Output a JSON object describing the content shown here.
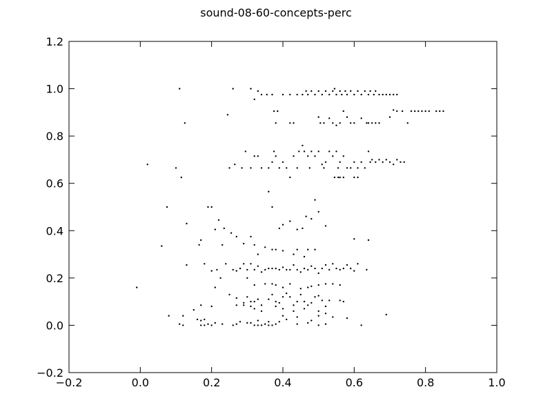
{
  "chart_data": {
    "type": "scatter",
    "title": "sound-08-60-concepts-perc",
    "xlabel": "",
    "ylabel": "",
    "xlim": [
      -0.2,
      1.0
    ],
    "ylim": [
      -0.2,
      1.2
    ],
    "grid": false,
    "marker_color": "#000000",
    "x_ticks": [
      -0.2,
      0.0,
      0.2,
      0.4,
      0.6,
      0.8,
      1.0
    ],
    "y_ticks": [
      -0.2,
      0.0,
      0.2,
      0.4,
      0.6,
      0.8,
      1.0,
      1.2
    ],
    "x_tick_labels": [
      "−0.2",
      "0.0",
      "0.2",
      "0.4",
      "0.6",
      "0.8",
      "1.0"
    ],
    "y_tick_labels": [
      "−0.2",
      "0.0",
      "0.2",
      "0.4",
      "0.6",
      "0.8",
      "1.0",
      "1.2"
    ],
    "points": [
      [
        0.11,
        1.0
      ],
      [
        0.26,
        1.0
      ],
      [
        0.31,
        1.0
      ],
      [
        0.32,
        0.955
      ],
      [
        0.33,
        0.99
      ],
      [
        0.34,
        0.975
      ],
      [
        0.355,
        0.975
      ],
      [
        0.37,
        0.975
      ],
      [
        0.4,
        0.975
      ],
      [
        0.42,
        0.975
      ],
      [
        0.44,
        0.975
      ],
      [
        0.455,
        0.975
      ],
      [
        0.465,
        0.99
      ],
      [
        0.47,
        0.975
      ],
      [
        0.48,
        0.99
      ],
      [
        0.49,
        0.975
      ],
      [
        0.5,
        0.99
      ],
      [
        0.51,
        0.975
      ],
      [
        0.52,
        0.99
      ],
      [
        0.53,
        0.975
      ],
      [
        0.54,
        0.99
      ],
      [
        0.545,
        1.0
      ],
      [
        0.55,
        0.975
      ],
      [
        0.56,
        0.99
      ],
      [
        0.565,
        0.975
      ],
      [
        0.575,
        0.99
      ],
      [
        0.58,
        0.975
      ],
      [
        0.59,
        0.99
      ],
      [
        0.6,
        0.975
      ],
      [
        0.61,
        0.99
      ],
      [
        0.62,
        0.975
      ],
      [
        0.63,
        0.99
      ],
      [
        0.64,
        0.975
      ],
      [
        0.645,
        0.99
      ],
      [
        0.655,
        0.975
      ],
      [
        0.66,
        0.99
      ],
      [
        0.67,
        0.975
      ],
      [
        0.68,
        0.975
      ],
      [
        0.69,
        0.975
      ],
      [
        0.7,
        0.975
      ],
      [
        0.71,
        0.975
      ],
      [
        0.72,
        0.975
      ],
      [
        0.125,
        0.855
      ],
      [
        0.245,
        0.89
      ],
      [
        0.375,
        0.905
      ],
      [
        0.385,
        0.905
      ],
      [
        0.38,
        0.855
      ],
      [
        0.42,
        0.855
      ],
      [
        0.43,
        0.855
      ],
      [
        0.5,
        0.88
      ],
      [
        0.505,
        0.855
      ],
      [
        0.515,
        0.855
      ],
      [
        0.53,
        0.875
      ],
      [
        0.54,
        0.855
      ],
      [
        0.55,
        0.845
      ],
      [
        0.56,
        0.855
      ],
      [
        0.57,
        0.905
      ],
      [
        0.58,
        0.88
      ],
      [
        0.59,
        0.855
      ],
      [
        0.6,
        0.855
      ],
      [
        0.62,
        0.875
      ],
      [
        0.635,
        0.855
      ],
      [
        0.64,
        0.855
      ],
      [
        0.65,
        0.855
      ],
      [
        0.66,
        0.855
      ],
      [
        0.67,
        0.855
      ],
      [
        0.7,
        0.88
      ],
      [
        0.71,
        0.91
      ],
      [
        0.72,
        0.905
      ],
      [
        0.735,
        0.905
      ],
      [
        0.75,
        0.855
      ],
      [
        0.76,
        0.905
      ],
      [
        0.77,
        0.905
      ],
      [
        0.78,
        0.905
      ],
      [
        0.79,
        0.905
      ],
      [
        0.8,
        0.905
      ],
      [
        0.81,
        0.905
      ],
      [
        0.83,
        0.905
      ],
      [
        0.84,
        0.905
      ],
      [
        0.85,
        0.905
      ],
      [
        0.02,
        0.68
      ],
      [
        0.1,
        0.665
      ],
      [
        0.115,
        0.625
      ],
      [
        0.25,
        0.665
      ],
      [
        0.265,
        0.68
      ],
      [
        0.285,
        0.665
      ],
      [
        0.295,
        0.735
      ],
      [
        0.31,
        0.665
      ],
      [
        0.32,
        0.715
      ],
      [
        0.33,
        0.715
      ],
      [
        0.34,
        0.665
      ],
      [
        0.36,
        0.665
      ],
      [
        0.37,
        0.69
      ],
      [
        0.375,
        0.735
      ],
      [
        0.38,
        0.715
      ],
      [
        0.39,
        0.665
      ],
      [
        0.4,
        0.69
      ],
      [
        0.41,
        0.665
      ],
      [
        0.42,
        0.625
      ],
      [
        0.43,
        0.715
      ],
      [
        0.44,
        0.665
      ],
      [
        0.445,
        0.735
      ],
      [
        0.455,
        0.76
      ],
      [
        0.46,
        0.735
      ],
      [
        0.47,
        0.715
      ],
      [
        0.475,
        0.665
      ],
      [
        0.48,
        0.735
      ],
      [
        0.49,
        0.715
      ],
      [
        0.5,
        0.735
      ],
      [
        0.51,
        0.68
      ],
      [
        0.515,
        0.665
      ],
      [
        0.52,
        0.69
      ],
      [
        0.53,
        0.735
      ],
      [
        0.54,
        0.715
      ],
      [
        0.545,
        0.625
      ],
      [
        0.55,
        0.735
      ],
      [
        0.555,
        0.665
      ],
      [
        0.56,
        0.69
      ],
      [
        0.57,
        0.715
      ],
      [
        0.58,
        0.665
      ],
      [
        0.59,
        0.665
      ],
      [
        0.6,
        0.69
      ],
      [
        0.61,
        0.665
      ],
      [
        0.62,
        0.69
      ],
      [
        0.63,
        0.665
      ],
      [
        0.64,
        0.735
      ],
      [
        0.645,
        0.69
      ],
      [
        0.65,
        0.7
      ],
      [
        0.66,
        0.69
      ],
      [
        0.67,
        0.7
      ],
      [
        0.68,
        0.69
      ],
      [
        0.69,
        0.7
      ],
      [
        0.7,
        0.69
      ],
      [
        0.71,
        0.68
      ],
      [
        0.72,
        0.7
      ],
      [
        0.73,
        0.69
      ],
      [
        0.74,
        0.69
      ],
      [
        0.6,
        0.625
      ],
      [
        0.61,
        0.625
      ],
      [
        0.57,
        0.625
      ],
      [
        0.56,
        0.625
      ],
      [
        0.555,
        0.625
      ],
      [
        0.075,
        0.5
      ],
      [
        0.13,
        0.43
      ],
      [
        0.19,
        0.5
      ],
      [
        0.2,
        0.5
      ],
      [
        0.21,
        0.405
      ],
      [
        0.22,
        0.445
      ],
      [
        0.235,
        0.41
      ],
      [
        0.255,
        0.39
      ],
      [
        0.36,
        0.565
      ],
      [
        0.37,
        0.5
      ],
      [
        0.39,
        0.41
      ],
      [
        0.4,
        0.425
      ],
      [
        0.42,
        0.44
      ],
      [
        0.44,
        0.405
      ],
      [
        0.455,
        0.41
      ],
      [
        0.465,
        0.46
      ],
      [
        0.48,
        0.45
      ],
      [
        0.49,
        0.53
      ],
      [
        0.5,
        0.48
      ],
      [
        0.52,
        0.42
      ],
      [
        0.06,
        0.335
      ],
      [
        0.165,
        0.34
      ],
      [
        0.17,
        0.36
      ],
      [
        0.23,
        0.34
      ],
      [
        0.27,
        0.375
      ],
      [
        0.29,
        0.345
      ],
      [
        0.31,
        0.375
      ],
      [
        0.32,
        0.34
      ],
      [
        0.33,
        0.3
      ],
      [
        0.35,
        0.33
      ],
      [
        0.37,
        0.32
      ],
      [
        0.38,
        0.32
      ],
      [
        0.4,
        0.315
      ],
      [
        0.43,
        0.3
      ],
      [
        0.44,
        0.32
      ],
      [
        0.46,
        0.29
      ],
      [
        0.47,
        0.32
      ],
      [
        0.49,
        0.32
      ],
      [
        0.6,
        0.365
      ],
      [
        0.64,
        0.36
      ],
      [
        0.13,
        0.255
      ],
      [
        0.18,
        0.26
      ],
      [
        0.2,
        0.23
      ],
      [
        0.215,
        0.235
      ],
      [
        0.225,
        0.2
      ],
      [
        0.24,
        0.26
      ],
      [
        0.26,
        0.235
      ],
      [
        0.27,
        0.23
      ],
      [
        0.28,
        0.24
      ],
      [
        0.29,
        0.26
      ],
      [
        0.3,
        0.235
      ],
      [
        0.31,
        0.26
      ],
      [
        0.32,
        0.235
      ],
      [
        0.33,
        0.25
      ],
      [
        0.34,
        0.225
      ],
      [
        0.35,
        0.235
      ],
      [
        0.36,
        0.24
      ],
      [
        0.37,
        0.24
      ],
      [
        0.38,
        0.24
      ],
      [
        0.39,
        0.235
      ],
      [
        0.4,
        0.245
      ],
      [
        0.41,
        0.235
      ],
      [
        0.42,
        0.235
      ],
      [
        0.43,
        0.255
      ],
      [
        0.44,
        0.235
      ],
      [
        0.45,
        0.225
      ],
      [
        0.46,
        0.24
      ],
      [
        0.47,
        0.235
      ],
      [
        0.48,
        0.25
      ],
      [
        0.49,
        0.24
      ],
      [
        0.5,
        0.22
      ],
      [
        0.51,
        0.24
      ],
      [
        0.52,
        0.255
      ],
      [
        0.53,
        0.235
      ],
      [
        0.54,
        0.26
      ],
      [
        0.55,
        0.24
      ],
      [
        0.56,
        0.235
      ],
      [
        0.57,
        0.24
      ],
      [
        0.58,
        0.255
      ],
      [
        0.59,
        0.24
      ],
      [
        0.6,
        0.23
      ],
      [
        0.61,
        0.26
      ],
      [
        0.635,
        0.235
      ],
      [
        0.3,
        0.2
      ],
      [
        0.32,
        0.17
      ],
      [
        0.35,
        0.175
      ],
      [
        0.37,
        0.175
      ],
      [
        0.38,
        0.17
      ],
      [
        0.4,
        0.16
      ],
      [
        0.42,
        0.175
      ],
      [
        0.45,
        0.155
      ],
      [
        0.47,
        0.16
      ],
      [
        0.48,
        0.165
      ],
      [
        0.5,
        0.17
      ],
      [
        0.52,
        0.175
      ],
      [
        0.54,
        0.175
      ],
      [
        0.56,
        0.17
      ],
      [
        -0.01,
        0.16
      ],
      [
        0.21,
        0.16
      ],
      [
        0.25,
        0.13
      ],
      [
        0.27,
        0.115
      ],
      [
        0.29,
        0.095
      ],
      [
        0.3,
        0.12
      ],
      [
        0.31,
        0.1
      ],
      [
        0.32,
        0.1
      ],
      [
        0.33,
        0.11
      ],
      [
        0.34,
        0.085
      ],
      [
        0.36,
        0.11
      ],
      [
        0.37,
        0.13
      ],
      [
        0.38,
        0.1
      ],
      [
        0.39,
        0.095
      ],
      [
        0.4,
        0.12
      ],
      [
        0.41,
        0.135
      ],
      [
        0.42,
        0.12
      ],
      [
        0.43,
        0.085
      ],
      [
        0.44,
        0.1
      ],
      [
        0.45,
        0.13
      ],
      [
        0.46,
        0.1
      ],
      [
        0.47,
        0.085
      ],
      [
        0.48,
        0.095
      ],
      [
        0.49,
        0.12
      ],
      [
        0.5,
        0.125
      ],
      [
        0.51,
        0.105
      ],
      [
        0.52,
        0.08
      ],
      [
        0.53,
        0.105
      ],
      [
        0.56,
        0.105
      ],
      [
        0.57,
        0.1
      ],
      [
        0.15,
        0.065
      ],
      [
        0.17,
        0.085
      ],
      [
        0.2,
        0.08
      ],
      [
        0.27,
        0.085
      ],
      [
        0.29,
        0.085
      ],
      [
        0.31,
        0.08
      ],
      [
        0.32,
        0.07
      ],
      [
        0.34,
        0.06
      ],
      [
        0.38,
        0.08
      ],
      [
        0.4,
        0.07
      ],
      [
        0.43,
        0.06
      ],
      [
        0.46,
        0.07
      ],
      [
        0.5,
        0.06
      ],
      [
        0.52,
        0.05
      ],
      [
        0.08,
        0.04
      ],
      [
        0.12,
        0.04
      ],
      [
        0.16,
        0.025
      ],
      [
        0.17,
        0.02
      ],
      [
        0.18,
        0.025
      ],
      [
        0.19,
        0.005
      ],
      [
        0.2,
        0.0
      ],
      [
        0.21,
        0.01
      ],
      [
        0.23,
        0.005
      ],
      [
        0.26,
        0.0
      ],
      [
        0.28,
        0.015
      ],
      [
        0.3,
        0.01
      ],
      [
        0.31,
        0.01
      ],
      [
        0.32,
        0.0
      ],
      [
        0.33,
        0.02
      ],
      [
        0.34,
        0.0
      ],
      [
        0.35,
        0.005
      ],
      [
        0.36,
        0.015
      ],
      [
        0.37,
        0.0
      ],
      [
        0.38,
        0.005
      ],
      [
        0.39,
        0.015
      ],
      [
        0.4,
        0.04
      ],
      [
        0.41,
        0.025
      ],
      [
        0.44,
        0.035
      ],
      [
        0.47,
        0.01
      ],
      [
        0.48,
        0.02
      ],
      [
        0.5,
        0.04
      ],
      [
        0.54,
        0.035
      ],
      [
        0.58,
        0.03
      ],
      [
        0.62,
        0.0
      ],
      [
        0.69,
        0.045
      ],
      [
        0.11,
        0.005
      ],
      [
        0.12,
        0.0
      ],
      [
        0.17,
        0.0
      ],
      [
        0.18,
        0.0
      ],
      [
        0.27,
        0.005
      ],
      [
        0.33,
        0.0
      ],
      [
        0.36,
        0.0
      ],
      [
        0.44,
        0.005
      ],
      [
        0.5,
        0.0
      ],
      [
        0.52,
        0.005
      ]
    ]
  }
}
